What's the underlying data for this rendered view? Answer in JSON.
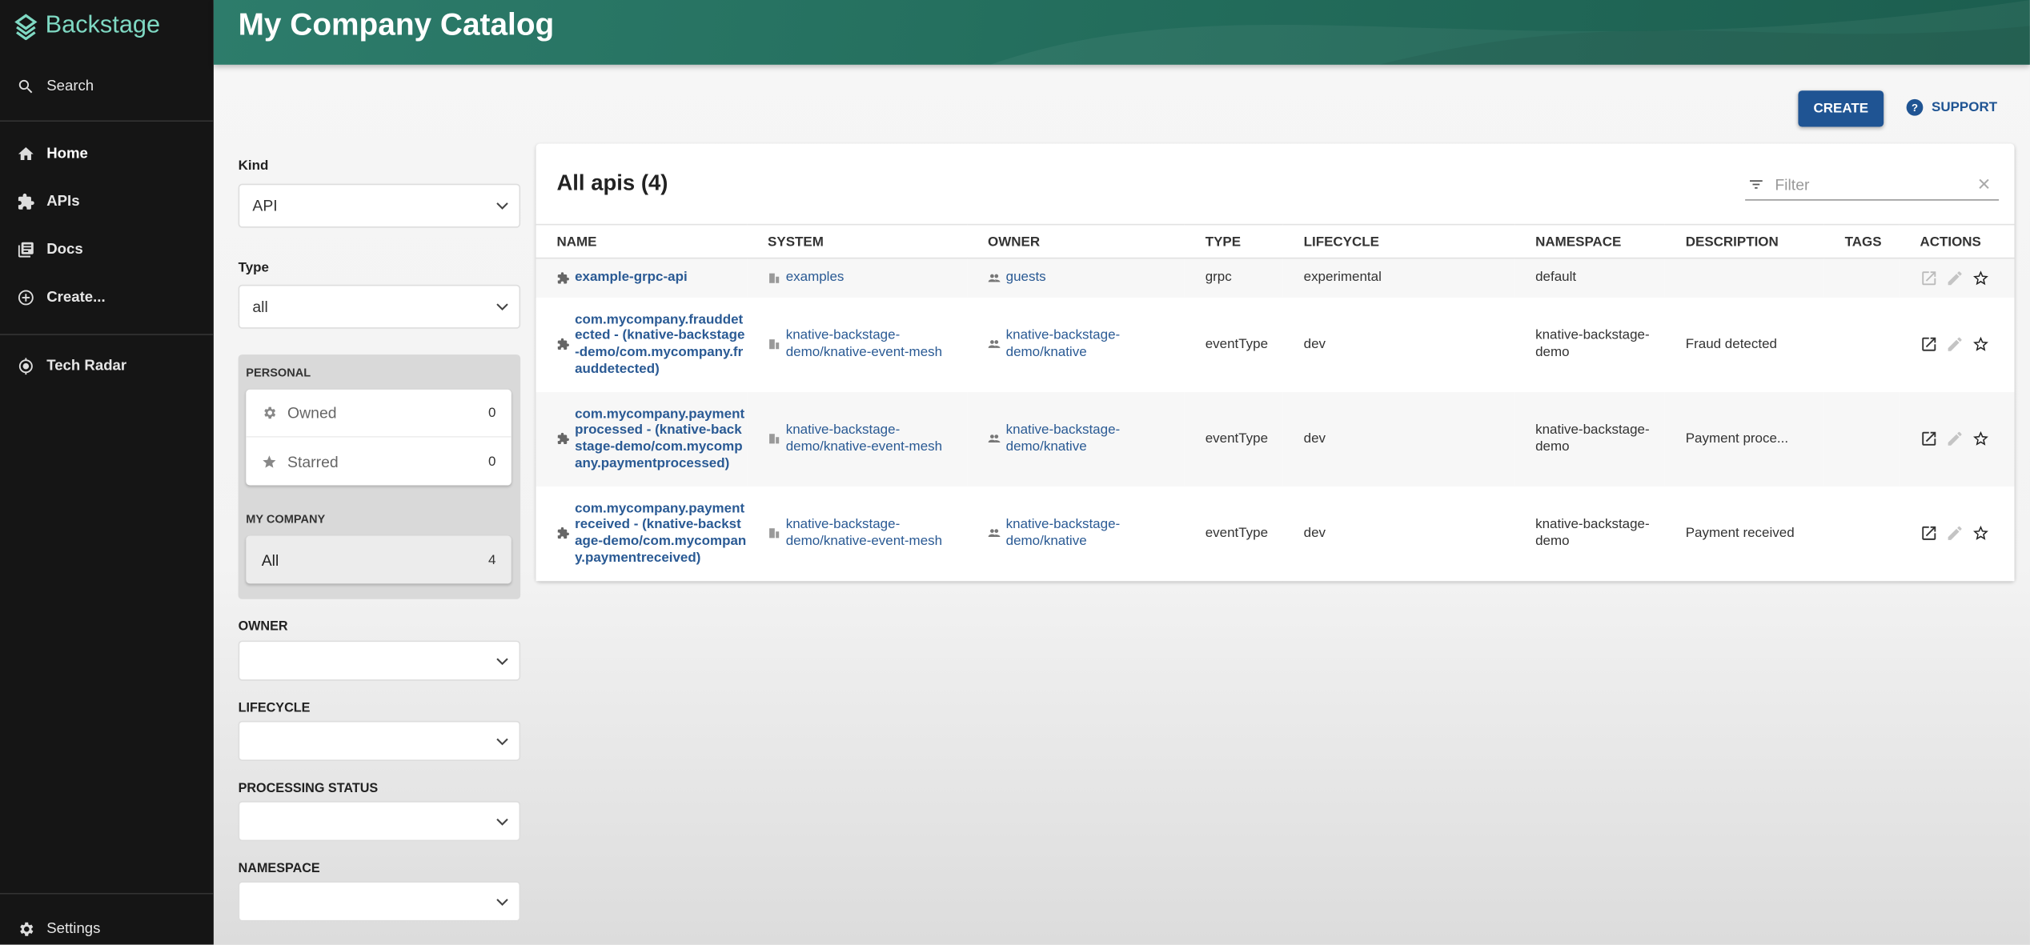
{
  "app": {
    "name": "Backstage",
    "accent": "#7fd9c3"
  },
  "sidebar": {
    "search": "Search",
    "items": [
      {
        "label": "Home",
        "icon": "home-icon"
      },
      {
        "label": "APIs",
        "icon": "puzzle-icon"
      },
      {
        "label": "Docs",
        "icon": "docs-icon"
      },
      {
        "label": "Create...",
        "icon": "add-circle-icon"
      },
      {
        "label": "Tech Radar",
        "icon": "radar-icon"
      }
    ],
    "settings": "Settings"
  },
  "header": {
    "title": "My Company Catalog"
  },
  "toolbar": {
    "create": "CREATE",
    "support": "SUPPORT"
  },
  "filters": {
    "kind": {
      "label": "Kind",
      "value": "API"
    },
    "type": {
      "label": "Type",
      "value": "all"
    },
    "personal": {
      "heading": "PERSONAL",
      "owned": "Owned",
      "owned_count": "0",
      "starred": "Starred",
      "starred_count": "0"
    },
    "company": {
      "heading": "MY COMPANY",
      "all": "All",
      "all_count": "4"
    },
    "owner": {
      "label": "OWNER",
      "value": ""
    },
    "lifecycle": {
      "label": "LIFECYCLE",
      "value": ""
    },
    "processing": {
      "label": "PROCESSING STATUS",
      "value": ""
    },
    "namespace": {
      "label": "NAMESPACE",
      "value": ""
    }
  },
  "table": {
    "title": "All apis (4)",
    "filter_placeholder": "Filter",
    "columns": [
      "NAME",
      "SYSTEM",
      "OWNER",
      "TYPE",
      "LIFECYCLE",
      "NAMESPACE",
      "DESCRIPTION",
      "TAGS",
      "ACTIONS"
    ],
    "rows": [
      {
        "name": "example-grpc-api",
        "system": "examples",
        "owner": "guests",
        "type": "grpc",
        "lifecycle": "experimental",
        "namespace": "default",
        "description": "",
        "tags": "",
        "view_enabled": false
      },
      {
        "name": "com.mycompany.frauddetected - (knative-backstage-demo/com.mycompany.frauddetected)",
        "system": "knative-backstage-demo/knative-event-mesh",
        "owner": "knative-backstage-demo/knative",
        "type": "eventType",
        "lifecycle": "dev",
        "namespace": "knative-backstage-demo",
        "description": "Fraud detected",
        "tags": "",
        "view_enabled": true
      },
      {
        "name": "com.mycompany.paymentprocessed - (knative-backstage-demo/com.mycompany.paymentprocessed)",
        "system": "knative-backstage-demo/knative-event-mesh",
        "owner": "knative-backstage-demo/knative",
        "type": "eventType",
        "lifecycle": "dev",
        "namespace": "knative-backstage-demo",
        "description": "Payment proce...",
        "tags": "",
        "view_enabled": true
      },
      {
        "name": "com.mycompany.paymentreceived - (knative-backstage-demo/com.mycompany.paymentreceived)",
        "system": "knative-backstage-demo/knative-event-mesh",
        "owner": "knative-backstage-demo/knative",
        "type": "eventType",
        "lifecycle": "dev",
        "namespace": "knative-backstage-demo",
        "description": "Payment received",
        "tags": "",
        "view_enabled": true
      }
    ]
  }
}
